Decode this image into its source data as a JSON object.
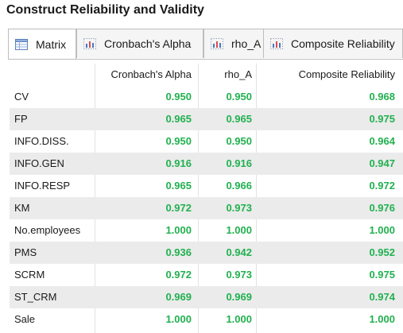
{
  "title": "Construct Reliability and Validity",
  "tabs": [
    {
      "label": "Matrix",
      "icon": "matrix-icon",
      "active": true
    },
    {
      "label": "Cronbach's Alpha",
      "icon": "chart-icon",
      "active": false
    },
    {
      "label": "rho_A",
      "icon": "chart-icon",
      "active": false
    },
    {
      "label": "Composite Reliability",
      "icon": "chart-icon",
      "active": false
    }
  ],
  "columns": [
    "Cronbach's Alpha",
    "rho_A",
    "Composite Reliability"
  ],
  "rows": [
    {
      "name": "CV",
      "alpha": "0.950",
      "rho": "0.950",
      "cr": "0.968"
    },
    {
      "name": "FP",
      "alpha": "0.965",
      "rho": "0.965",
      "cr": "0.975"
    },
    {
      "name": "INFO.DISS.",
      "alpha": "0.950",
      "rho": "0.950",
      "cr": "0.964"
    },
    {
      "name": "INFO.GEN",
      "alpha": "0.916",
      "rho": "0.916",
      "cr": "0.947"
    },
    {
      "name": "INFO.RESP",
      "alpha": "0.965",
      "rho": "0.966",
      "cr": "0.972"
    },
    {
      "name": "KM",
      "alpha": "0.972",
      "rho": "0.973",
      "cr": "0.976"
    },
    {
      "name": "No.employees",
      "alpha": "1.000",
      "rho": "1.000",
      "cr": "1.000"
    },
    {
      "name": "PMS",
      "alpha": "0.936",
      "rho": "0.942",
      "cr": "0.952"
    },
    {
      "name": "SCRM",
      "alpha": "0.972",
      "rho": "0.973",
      "cr": "0.975"
    },
    {
      "name": "ST_CRM",
      "alpha": "0.969",
      "rho": "0.969",
      "cr": "0.974"
    },
    {
      "name": "Sale",
      "alpha": "1.000",
      "rho": "1.000",
      "cr": "1.000"
    }
  ],
  "colors": {
    "value_green": "#21b14f",
    "alt_row": "#ebebeb"
  }
}
